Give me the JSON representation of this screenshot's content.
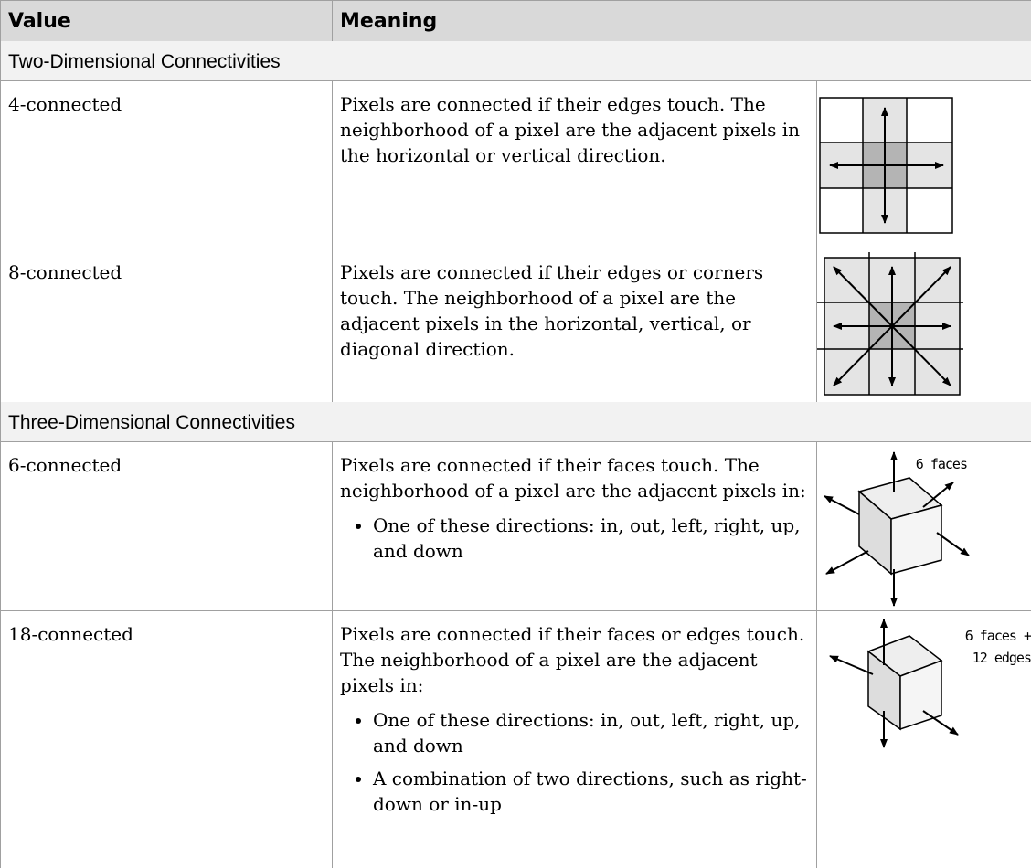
{
  "table": {
    "header": [
      "Value",
      "Meaning"
    ],
    "sections": [
      {
        "title": "Two-Dimensional Connectivities",
        "rows": [
          {
            "value": "4-connected",
            "meaning": "Pixels are connected if their edges touch. The neighborhood of a pixel are the adjacent pixels in the horizontal or vertical direction."
          },
          {
            "value": "8-connected",
            "meaning": "Pixels are connected if their edges or corners touch. The neighborhood of a pixel are the adjacent pixels in the horizontal, vertical, or diagonal direction."
          }
        ]
      },
      {
        "title": "Three-Dimensional Connectivities",
        "rows": [
          {
            "value": "6-connected",
            "meaning": "Pixels are connected if their faces touch. The neighborhood of a pixel are the adjacent pixels in:",
            "bullets": [
              "One of these directions: in, out, left, right, up, and down"
            ],
            "image_labels": [
              "6 faces"
            ]
          },
          {
            "value": "18-connected",
            "meaning": "Pixels are connected if their faces or edges touch. The neighborhood of a pixel are the adjacent pixels in:",
            "bullets": [
              "One of these directions: in, out, left, right, up, and down",
              "A combination of two directions, such as right-down or in-up"
            ],
            "image_labels": [
              "6 faces +",
              "12 edges"
            ]
          }
        ]
      }
    ]
  }
}
